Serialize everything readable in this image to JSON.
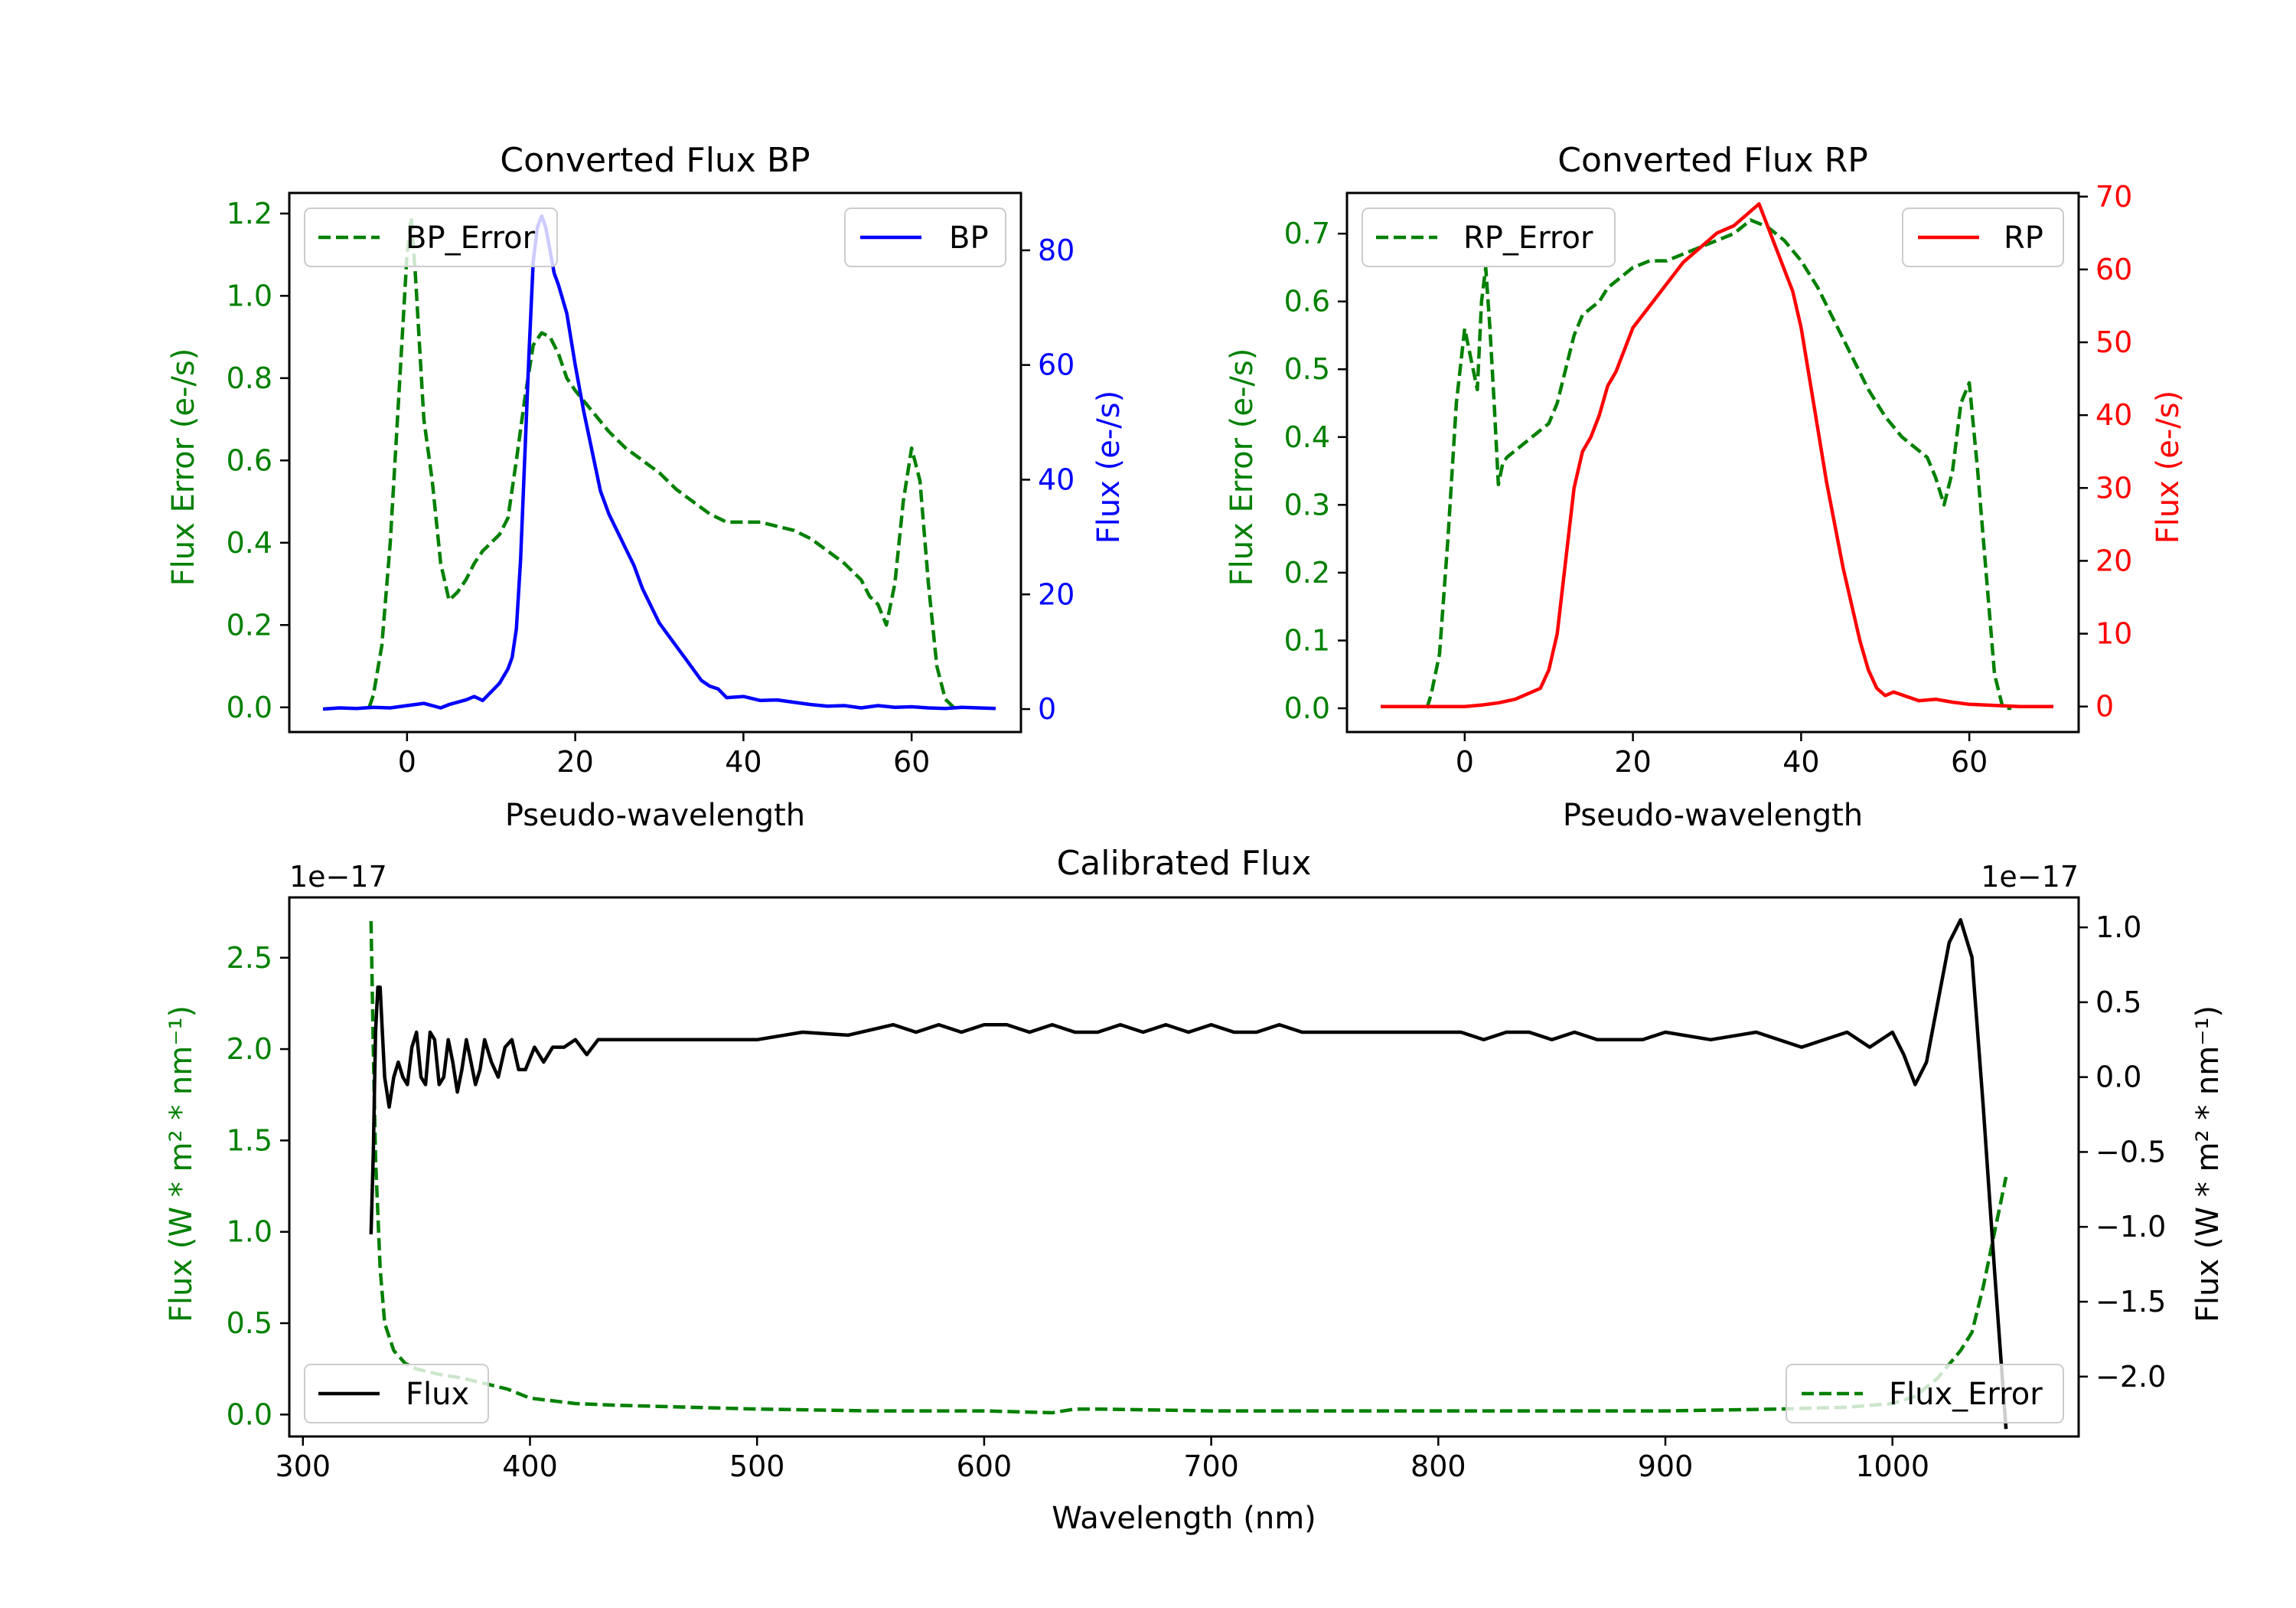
{
  "chart_data": [
    {
      "type": "line",
      "title": "Converted Flux BP",
      "xlabel": "Pseudo-wavelength",
      "ylabel": "Flux Error (e-/s)",
      "ylabel_right": "Flux (e-/s)",
      "xlim": [
        -14,
        73
      ],
      "ylim": [
        -0.06,
        1.25
      ],
      "ylim_right": [
        -4,
        90
      ],
      "xticks": [
        0,
        20,
        40,
        60
      ],
      "yticks": [
        0.0,
        0.2,
        0.4,
        0.6,
        0.8,
        1.0,
        1.2
      ],
      "yticks_right": [
        0,
        20,
        40,
        60,
        80
      ],
      "ytick_labels": [
        "0.0",
        "0.2",
        "0.4",
        "0.6",
        "0.8",
        "1.0",
        "1.2"
      ],
      "yticks_right_labels": [
        "0",
        "20",
        "40",
        "60",
        "80"
      ],
      "color_left": "#008000",
      "color_right": "#0000ff",
      "series": [
        {
          "name": "BP_Error",
          "axis": "left",
          "style": "dashed",
          "color": "#008000",
          "x": [
            -4.5,
            -4,
            -3,
            -2,
            -1,
            0,
            0.5,
            1,
            2,
            3,
            4,
            5,
            6,
            7,
            8,
            9,
            10,
            11,
            12,
            13,
            14,
            15,
            16,
            17,
            18,
            19,
            20,
            22,
            24,
            26,
            28,
            30,
            32,
            34,
            36,
            38,
            40,
            42,
            44,
            46,
            48,
            50,
            52,
            54,
            55,
            56,
            57,
            58,
            59,
            60,
            61,
            62,
            63,
            64,
            65,
            66
          ],
          "values": [
            0.0,
            0.03,
            0.15,
            0.4,
            0.75,
            1.1,
            1.19,
            1.05,
            0.7,
            0.55,
            0.35,
            0.26,
            0.28,
            0.31,
            0.35,
            0.38,
            0.4,
            0.42,
            0.46,
            0.6,
            0.75,
            0.88,
            0.91,
            0.9,
            0.86,
            0.8,
            0.77,
            0.72,
            0.67,
            0.63,
            0.6,
            0.57,
            0.53,
            0.5,
            0.47,
            0.45,
            0.45,
            0.45,
            0.44,
            0.43,
            0.41,
            0.38,
            0.35,
            0.31,
            0.27,
            0.25,
            0.2,
            0.3,
            0.5,
            0.63,
            0.55,
            0.3,
            0.1,
            0.02,
            0.0,
            0.0
          ]
        },
        {
          "name": "BP",
          "axis": "right",
          "style": "solid",
          "color": "#0000ff",
          "x": [
            -10,
            -8,
            -6,
            -4,
            -2,
            0,
            2,
            4,
            5,
            6,
            7,
            8,
            9,
            10,
            11,
            12,
            12.5,
            13,
            13.5,
            14,
            14.5,
            15,
            15.5,
            16,
            16.5,
            17,
            17.5,
            18,
            19,
            20,
            21,
            22,
            23,
            24,
            25,
            26,
            27,
            28,
            29,
            30,
            31,
            32,
            33,
            34,
            35,
            36,
            37,
            38,
            40,
            42,
            44,
            46,
            48,
            50,
            52,
            54,
            56,
            58,
            60,
            62,
            64,
            66,
            68,
            70
          ],
          "values": [
            0,
            0.2,
            0.1,
            0.3,
            0.2,
            0.6,
            1.0,
            0.2,
            0.8,
            1.2,
            1.6,
            2.2,
            1.5,
            3.0,
            4.5,
            7.0,
            9.0,
            14.0,
            26.0,
            44.0,
            62.0,
            78.0,
            84.0,
            86.0,
            84.0,
            80.0,
            76.0,
            74.0,
            69.0,
            60.0,
            52.0,
            45.0,
            38.0,
            34.0,
            31.0,
            28.0,
            25.0,
            21.0,
            18.0,
            15.0,
            13.0,
            11.0,
            9.0,
            7.0,
            5.0,
            4.0,
            3.5,
            2.0,
            2.2,
            1.5,
            1.6,
            1.2,
            0.8,
            0.5,
            0.6,
            0.2,
            0.6,
            0.3,
            0.4,
            0.2,
            0.1,
            0.3,
            0.2,
            0.1
          ]
        }
      ],
      "legend": [
        {
          "label": "BP_Error",
          "position": "upper-left"
        },
        {
          "label": "BP",
          "position": "upper-right"
        }
      ]
    },
    {
      "type": "line",
      "title": "Converted Flux RP",
      "xlabel": "Pseudo-wavelength",
      "ylabel": "Flux Error (e-/s)",
      "ylabel_right": "Flux (e-/s)",
      "xlim": [
        -14,
        73
      ],
      "ylim": [
        -0.035,
        0.76
      ],
      "ylim_right": [
        -3.5,
        70.5
      ],
      "xticks": [
        0,
        20,
        40,
        60
      ],
      "yticks": [
        0.0,
        0.1,
        0.2,
        0.3,
        0.4,
        0.5,
        0.6,
        0.7
      ],
      "yticks_right": [
        0,
        10,
        20,
        30,
        40,
        50,
        60,
        70
      ],
      "ytick_labels": [
        "0.0",
        "0.1",
        "0.2",
        "0.3",
        "0.4",
        "0.5",
        "0.6",
        "0.7"
      ],
      "yticks_right_labels": [
        "0",
        "10",
        "20",
        "30",
        "40",
        "50",
        "60",
        "70"
      ],
      "color_left": "#008000",
      "color_right": "#ff0000",
      "series": [
        {
          "name": "RP_Error",
          "axis": "left",
          "style": "dashed",
          "color": "#008000",
          "x": [
            -4.5,
            -4,
            -3,
            -2,
            -1,
            0,
            1,
            1.5,
            2,
            2.5,
            3,
            3.5,
            4,
            4.5,
            5,
            6,
            7,
            8,
            9,
            10,
            11,
            12,
            13,
            14,
            15,
            16,
            17,
            18,
            19,
            20,
            22,
            24,
            26,
            28,
            30,
            32,
            34,
            36,
            38,
            40,
            42,
            44,
            46,
            48,
            50,
            52,
            54,
            55,
            56,
            57,
            58,
            59,
            60,
            61,
            62,
            63,
            64,
            65
          ],
          "values": [
            0.0,
            0.02,
            0.08,
            0.25,
            0.45,
            0.56,
            0.5,
            0.47,
            0.6,
            0.65,
            0.56,
            0.45,
            0.33,
            0.36,
            0.37,
            0.38,
            0.39,
            0.4,
            0.41,
            0.42,
            0.45,
            0.5,
            0.55,
            0.58,
            0.59,
            0.6,
            0.62,
            0.63,
            0.64,
            0.65,
            0.66,
            0.66,
            0.67,
            0.68,
            0.69,
            0.7,
            0.72,
            0.71,
            0.69,
            0.66,
            0.62,
            0.57,
            0.52,
            0.47,
            0.43,
            0.4,
            0.38,
            0.37,
            0.34,
            0.3,
            0.35,
            0.45,
            0.48,
            0.35,
            0.2,
            0.05,
            0.0,
            0.0
          ]
        },
        {
          "name": "RP",
          "axis": "right",
          "style": "solid",
          "color": "#ff0000",
          "x": [
            -10,
            -5,
            0,
            2,
            4,
            6,
            8,
            9,
            10,
            11,
            12,
            13,
            14,
            15,
            16,
            17,
            18,
            19,
            20,
            22,
            24,
            26,
            28,
            30,
            32,
            34,
            35,
            36,
            37,
            38,
            39,
            40,
            41,
            42,
            43,
            44,
            45,
            46,
            47,
            48,
            49,
            50,
            51,
            52,
            54,
            56,
            58,
            60,
            62,
            64,
            66,
            70
          ],
          "values": [
            0,
            0,
            0,
            0.2,
            0.5,
            1.0,
            2.0,
            2.5,
            5.0,
            10.0,
            20.0,
            30.0,
            35.0,
            37.0,
            40.0,
            44.0,
            46.0,
            49.0,
            52.0,
            55.0,
            58.0,
            61.0,
            63.0,
            65.0,
            66.0,
            68.0,
            69.0,
            66.0,
            63.0,
            60.0,
            57.0,
            52.0,
            45.0,
            38.0,
            31.0,
            25.0,
            19.0,
            14.0,
            9.0,
            5.0,
            2.5,
            1.5,
            2.0,
            1.6,
            0.8,
            1.0,
            0.6,
            0.3,
            0.2,
            0.1,
            0.0,
            0.0
          ]
        }
      ],
      "legend": [
        {
          "label": "RP_Error",
          "position": "upper-left"
        },
        {
          "label": "RP",
          "position": "upper-right"
        }
      ]
    },
    {
      "type": "line",
      "title": "Calibrated Flux",
      "xlabel": "Wavelength (nm)",
      "ylabel": "Flux (W * m² * nm⁻¹)",
      "ylabel_right": "Flux (W * m² * nm⁻¹)",
      "offset_left": "1e−17",
      "offset_right": "1e−17",
      "xlim": [
        294,
        1082
      ],
      "ylim": [
        -0.12,
        2.83
      ],
      "ylim_right": [
        -2.4,
        1.2
      ],
      "xticks": [
        300,
        400,
        500,
        600,
        700,
        800,
        900,
        1000
      ],
      "yticks": [
        0.0,
        0.5,
        1.0,
        1.5,
        2.0,
        2.5
      ],
      "yticks_right": [
        -2.0,
        -1.5,
        -1.0,
        -0.5,
        0.0,
        0.5,
        1.0
      ],
      "ytick_labels": [
        "0.0",
        "0.5",
        "1.0",
        "1.5",
        "2.0",
        "2.5"
      ],
      "yticks_right_labels": [
        "−2.0",
        "−1.5",
        "−1.0",
        "−0.5",
        "0.0",
        "0.5",
        "1.0"
      ],
      "color_left": "#008000",
      "color_right": "#000000",
      "series": [
        {
          "name": "Flux_Error",
          "axis": "left",
          "style": "dashed",
          "color": "#008000",
          "x": [
            330,
            331,
            332,
            334,
            336,
            340,
            345,
            350,
            360,
            370,
            380,
            390,
            400,
            420,
            440,
            500,
            550,
            600,
            630,
            640,
            650,
            700,
            750,
            800,
            850,
            900,
            950,
            980,
            1000,
            1010,
            1020,
            1030,
            1035,
            1040,
            1045,
            1050
          ],
          "values": [
            2.7,
            2.0,
            1.4,
            0.8,
            0.5,
            0.35,
            0.28,
            0.25,
            0.22,
            0.2,
            0.17,
            0.14,
            0.09,
            0.06,
            0.05,
            0.03,
            0.02,
            0.02,
            0.01,
            0.03,
            0.03,
            0.02,
            0.02,
            0.02,
            0.02,
            0.02,
            0.03,
            0.04,
            0.06,
            0.1,
            0.2,
            0.35,
            0.45,
            0.7,
            1.0,
            1.3
          ]
        },
        {
          "name": "Flux",
          "axis": "right",
          "style": "solid",
          "color": "#000000",
          "x": [
            330,
            331,
            332,
            333,
            334,
            335,
            336,
            338,
            340,
            342,
            344,
            346,
            348,
            350,
            352,
            354,
            356,
            358,
            360,
            362,
            364,
            366,
            368,
            370,
            372,
            374,
            376,
            378,
            380,
            383,
            386,
            389,
            392,
            395,
            398,
            402,
            406,
            410,
            415,
            420,
            425,
            430,
            440,
            460,
            480,
            500,
            520,
            540,
            560,
            570,
            580,
            590,
            600,
            610,
            620,
            630,
            640,
            650,
            660,
            670,
            680,
            690,
            700,
            710,
            720,
            730,
            740,
            750,
            760,
            770,
            780,
            790,
            800,
            810,
            820,
            830,
            840,
            850,
            860,
            870,
            880,
            890,
            900,
            920,
            940,
            960,
            980,
            990,
            1000,
            1005,
            1010,
            1015,
            1020,
            1025,
            1030,
            1035,
            1040,
            1045,
            1050
          ],
          "values": [
            -1.05,
            -0.5,
            0.3,
            0.6,
            0.6,
            0.3,
            0.0,
            -0.2,
            0.0,
            0.1,
            0.0,
            -0.05,
            0.2,
            0.3,
            0.0,
            -0.05,
            0.3,
            0.25,
            -0.05,
            0.0,
            0.25,
            0.1,
            -0.1,
            0.05,
            0.25,
            0.1,
            -0.05,
            0.05,
            0.25,
            0.1,
            0.0,
            0.2,
            0.25,
            0.05,
            0.05,
            0.2,
            0.1,
            0.2,
            0.2,
            0.25,
            0.15,
            0.25,
            0.25,
            0.25,
            0.25,
            0.25,
            0.3,
            0.28,
            0.35,
            0.3,
            0.35,
            0.3,
            0.35,
            0.35,
            0.3,
            0.35,
            0.3,
            0.3,
            0.35,
            0.3,
            0.35,
            0.3,
            0.35,
            0.3,
            0.3,
            0.35,
            0.3,
            0.3,
            0.3,
            0.3,
            0.3,
            0.3,
            0.3,
            0.3,
            0.25,
            0.3,
            0.3,
            0.25,
            0.3,
            0.25,
            0.25,
            0.25,
            0.3,
            0.25,
            0.3,
            0.2,
            0.3,
            0.2,
            0.3,
            0.15,
            -0.05,
            0.1,
            0.5,
            0.9,
            1.05,
            0.8,
            -0.2,
            -1.3,
            -2.35
          ]
        }
      ],
      "legend": [
        {
          "label": "Flux",
          "position": "lower-left"
        },
        {
          "label": "Flux_Error",
          "position": "lower-right"
        }
      ]
    }
  ]
}
